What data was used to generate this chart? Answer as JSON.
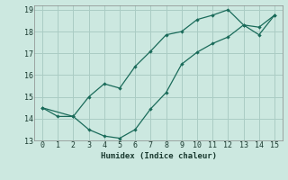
{
  "xlabel": "Humidex (Indice chaleur)",
  "xlim": [
    -0.5,
    15.5
  ],
  "ylim": [
    13,
    19.2
  ],
  "yticks": [
    13,
    14,
    15,
    16,
    17,
    18,
    19
  ],
  "xticks": [
    0,
    1,
    2,
    3,
    4,
    5,
    6,
    7,
    8,
    9,
    10,
    11,
    12,
    13,
    14,
    15
  ],
  "background_color": "#cce8e0",
  "grid_color": "#aaccC4",
  "line_color": "#1a6b5a",
  "curve1_x": [
    0,
    1,
    2,
    3,
    4,
    5,
    6,
    7,
    8,
    9,
    10,
    11,
    12,
    13,
    14,
    15
  ],
  "curve1_y": [
    14.5,
    14.1,
    14.1,
    15.0,
    15.6,
    15.4,
    16.4,
    17.1,
    17.85,
    18.0,
    18.55,
    18.75,
    19.0,
    18.3,
    18.2,
    18.75
  ],
  "curve2_x": [
    0,
    2,
    3,
    4,
    5,
    6,
    7,
    8,
    9,
    10,
    11,
    12,
    13,
    14,
    15
  ],
  "curve2_y": [
    14.5,
    14.1,
    13.5,
    13.2,
    13.1,
    13.5,
    14.45,
    15.2,
    16.5,
    17.05,
    17.45,
    17.75,
    18.3,
    17.85,
    18.75
  ]
}
